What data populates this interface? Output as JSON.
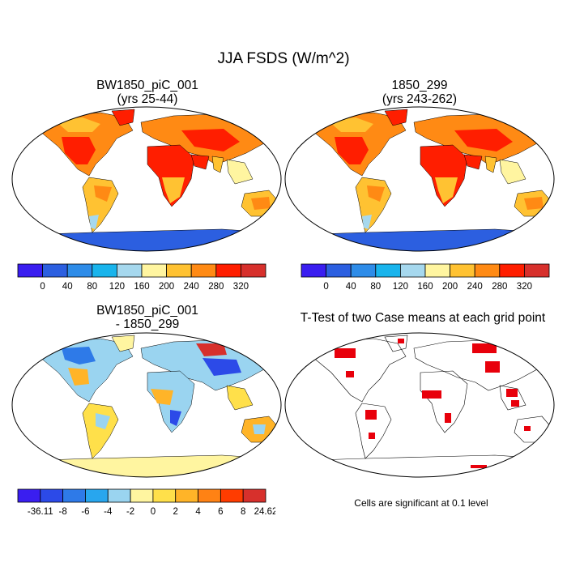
{
  "chart_data": [
    {
      "type": "heatmap",
      "title": "BW1850_piC_001",
      "subtitle": "(yrs 25-44)",
      "colorbar": {
        "tick_labels": [
          "0",
          "40",
          "80",
          "120",
          "160",
          "200",
          "240",
          "280",
          "320"
        ],
        "colors": [
          "#3a1ef0",
          "#2c5fe0",
          "#2e8ce8",
          "#19b4ec",
          "#a6d8ee",
          "#fff5a0",
          "#ffc232",
          "#ff8a14",
          "#ff1e00",
          "#d7302c"
        ]
      }
    },
    {
      "type": "heatmap",
      "title": "1850_299",
      "subtitle": "(yrs 243-262)",
      "colorbar": {
        "tick_labels": [
          "0",
          "40",
          "80",
          "120",
          "160",
          "200",
          "240",
          "280",
          "320"
        ],
        "colors": [
          "#3a1ef0",
          "#2c5fe0",
          "#2e8ce8",
          "#19b4ec",
          "#a6d8ee",
          "#fff5a0",
          "#ffc232",
          "#ff8a14",
          "#ff1e00",
          "#d7302c"
        ]
      }
    },
    {
      "type": "heatmap",
      "title": "BW1850_piC_001",
      "subtitle": "- 1850_299",
      "colorbar": {
        "tick_labels": [
          "-36.11",
          "-8",
          "-6",
          "-4",
          "-2",
          "0",
          "2",
          "4",
          "6",
          "8",
          "24.62"
        ],
        "colors": [
          "#3a1ef0",
          "#2c4ae8",
          "#2e7ae8",
          "#28a6ee",
          "#9ad4f0",
          "#fff5a0",
          "#ffe04a",
          "#ffb428",
          "#ff8214",
          "#ff3c00",
          "#d7302c"
        ]
      }
    },
    {
      "type": "heatmap",
      "title": "T-Test of two Case means at each grid point",
      "note": "Cells are significant at 0.1 level",
      "colors": {
        "significant": "#e8000b"
      }
    }
  ],
  "header": {
    "title": "JJA FSDS (W/m^2)"
  }
}
